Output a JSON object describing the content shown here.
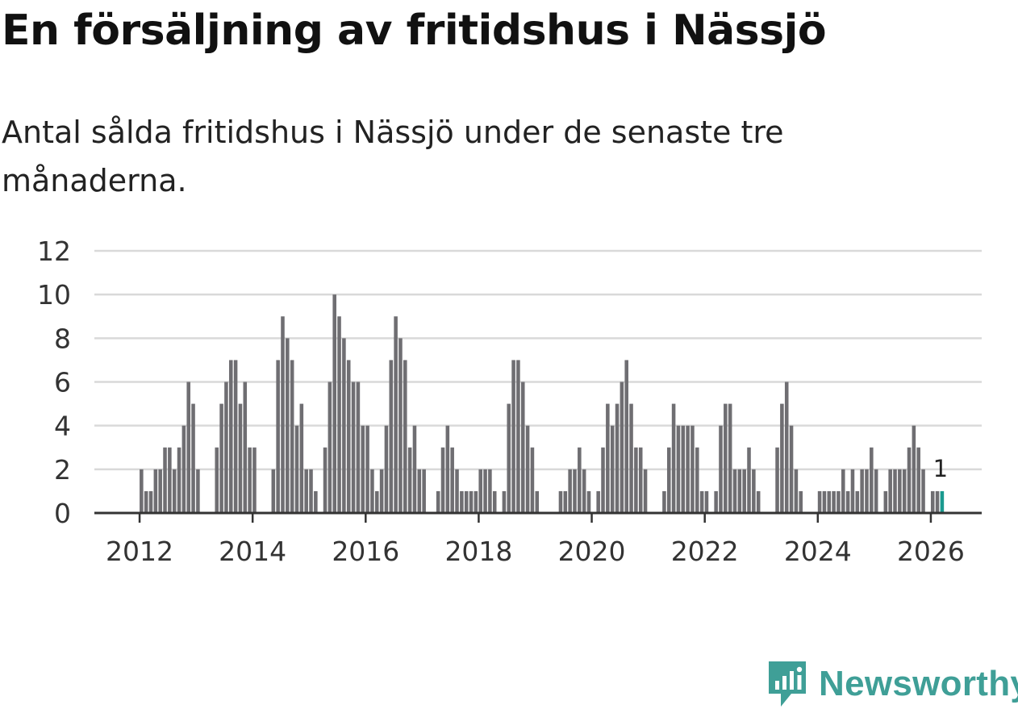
{
  "title": "En försäljning av fritidshus i Nässjö",
  "subtitle": "Antal sålda fritidshus i Nässjö under de senaste tre månaderna.",
  "brand": {
    "name": "Newsworthy",
    "color": "#3f9f97",
    "icon": "newsworthy-logo-icon"
  },
  "colors": {
    "bar": "#6f6e72",
    "highlight": "#1a9a8f",
    "grid": "#d9d9d9",
    "axis": "#333333"
  },
  "chart_data": {
    "type": "bar",
    "title": "En försäljning av fritidshus i Nässjö",
    "subtitle": "Antal sålda fritidshus i Nässjö under de senaste tre månaderna.",
    "xlabel": "",
    "ylabel": "",
    "ylim": [
      0,
      12
    ],
    "xlim": [
      2011.2,
      2026.9
    ],
    "yticks": [
      0,
      2,
      4,
      6,
      8,
      10,
      12
    ],
    "xticks": [
      2012,
      2014,
      2016,
      2018,
      2020,
      2022,
      2024,
      2026
    ],
    "grid": true,
    "frequency": "monthly",
    "start": "2012-01",
    "values": [
      2,
      1,
      1,
      2,
      2,
      3,
      3,
      2,
      3,
      4,
      6,
      5,
      2,
      0,
      0,
      0,
      3,
      5,
      6,
      7,
      7,
      5,
      6,
      3,
      3,
      0,
      0,
      0,
      2,
      7,
      9,
      8,
      7,
      4,
      5,
      2,
      2,
      1,
      0,
      3,
      6,
      10,
      9,
      8,
      7,
      6,
      6,
      4,
      4,
      2,
      1,
      2,
      4,
      7,
      9,
      8,
      7,
      3,
      4,
      2,
      2,
      0,
      0,
      1,
      3,
      4,
      3,
      2,
      1,
      1,
      1,
      1,
      2,
      2,
      2,
      1,
      0,
      1,
      5,
      7,
      7,
      6,
      4,
      3,
      1,
      0,
      0,
      0,
      0,
      1,
      1,
      2,
      2,
      3,
      2,
      1,
      0,
      1,
      3,
      5,
      4,
      5,
      6,
      7,
      5,
      3,
      3,
      2,
      0,
      0,
      0,
      1,
      3,
      5,
      4,
      4,
      4,
      4,
      3,
      1,
      1,
      0,
      1,
      4,
      5,
      5,
      2,
      2,
      2,
      3,
      2,
      1,
      0,
      0,
      0,
      3,
      5,
      6,
      4,
      2,
      1,
      0,
      0,
      0,
      1,
      1,
      1,
      1,
      1,
      2,
      1,
      2,
      1,
      2,
      2,
      3,
      2,
      0,
      1,
      2,
      2,
      2,
      2,
      3,
      4,
      3,
      2,
      0,
      1,
      1,
      1
    ],
    "highlight": {
      "index": 170,
      "label": "1",
      "value": 1
    }
  }
}
